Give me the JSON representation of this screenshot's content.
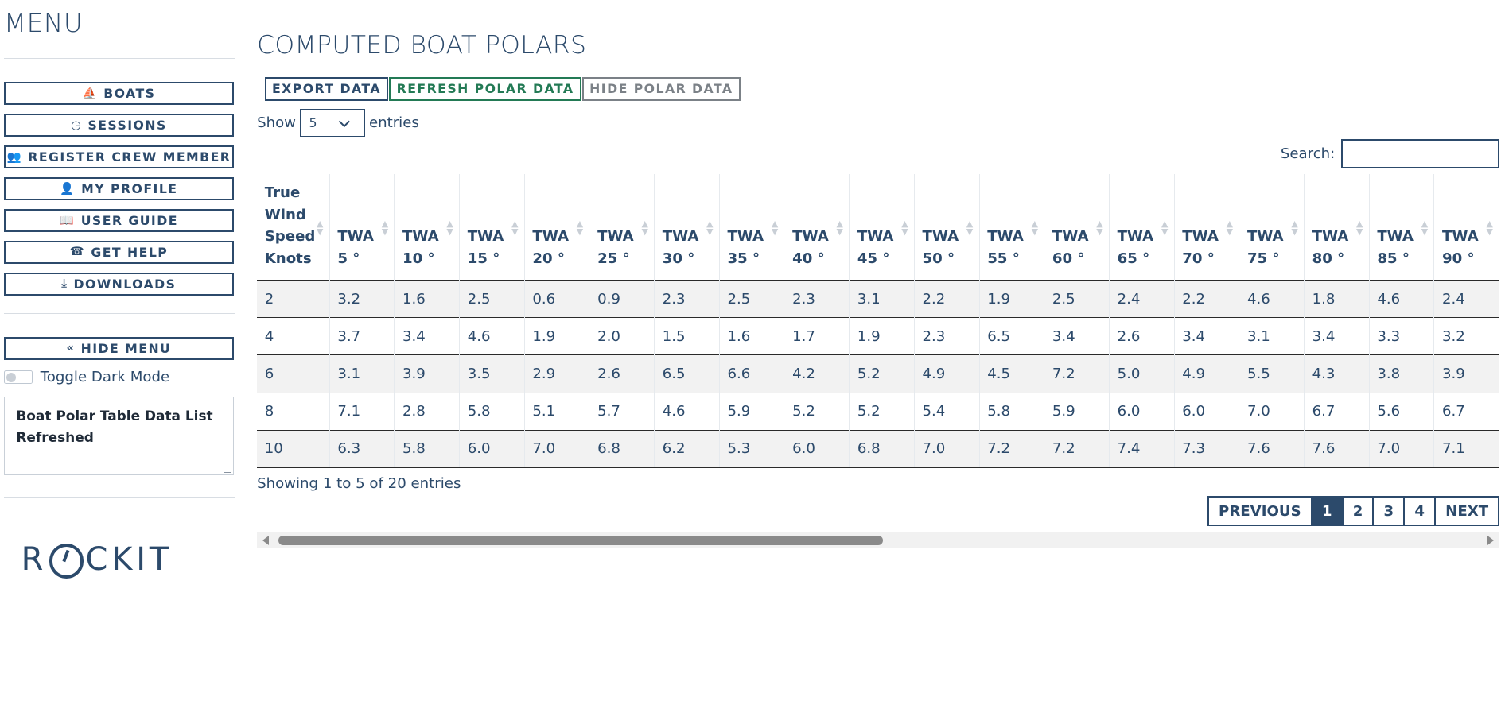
{
  "sidebar": {
    "title": "MENU",
    "items": [
      {
        "label": "BOATS",
        "icon": "sailboat-icon",
        "glyph": "⛵"
      },
      {
        "label": "SESSIONS",
        "icon": "clock-icon",
        "glyph": "◷"
      },
      {
        "label": "REGISTER CREW MEMBER",
        "icon": "users-icon",
        "glyph": "👥"
      },
      {
        "label": "MY PROFILE",
        "icon": "user-icon",
        "glyph": "👤"
      },
      {
        "label": "USER GUIDE",
        "icon": "book-icon",
        "glyph": "📖"
      },
      {
        "label": "GET HELP",
        "icon": "phone-icon",
        "glyph": "☎"
      },
      {
        "label": "DOWNLOADS",
        "icon": "download-icon",
        "glyph": "⤓"
      }
    ],
    "hide_menu": {
      "label": "HIDE MENU",
      "glyph": "«"
    },
    "dark_mode_label": "Toggle Dark Mode",
    "status_message": "Boat Polar Table Data List Refreshed",
    "logo_text_left": "R",
    "logo_text_right": "CKIT"
  },
  "main": {
    "title": "COMPUTED BOAT POLARS",
    "actions": {
      "export": "EXPORT DATA",
      "refresh": "REFRESH POLAR DATA",
      "hide": "HIDE POLAR DATA"
    },
    "length": {
      "show": "Show",
      "value": "5",
      "entries": "entries"
    },
    "search_label": "Search:",
    "table": {
      "first_header": "True Wind Speed Knots",
      "headers": [
        "5 °",
        "10 °",
        "15 °",
        "20 °",
        "25 °",
        "30 °",
        "35 °",
        "40 °",
        "45 °",
        "50 °",
        "55 °",
        "60 °",
        "65 °",
        "70 °",
        "75 °",
        "80 °",
        "85 °",
        "90 °"
      ],
      "header_prefix": "TWA",
      "rows": [
        {
          "tws": "2",
          "vals": [
            "3.2",
            "1.6",
            "2.5",
            "0.6",
            "0.9",
            "2.3",
            "2.5",
            "2.3",
            "3.1",
            "2.2",
            "1.9",
            "2.5",
            "2.4",
            "2.2",
            "4.6",
            "1.8",
            "4.6",
            "2.4"
          ]
        },
        {
          "tws": "4",
          "vals": [
            "3.7",
            "3.4",
            "4.6",
            "1.9",
            "2.0",
            "1.5",
            "1.6",
            "1.7",
            "1.9",
            "2.3",
            "6.5",
            "3.4",
            "2.6",
            "3.4",
            "3.1",
            "3.4",
            "3.3",
            "3.2"
          ]
        },
        {
          "tws": "6",
          "vals": [
            "3.1",
            "3.9",
            "3.5",
            "2.9",
            "2.6",
            "6.5",
            "6.6",
            "4.2",
            "5.2",
            "4.9",
            "4.5",
            "7.2",
            "5.0",
            "4.9",
            "5.5",
            "4.3",
            "3.8",
            "3.9"
          ]
        },
        {
          "tws": "8",
          "vals": [
            "7.1",
            "2.8",
            "5.8",
            "5.1",
            "5.7",
            "4.6",
            "5.9",
            "5.2",
            "5.2",
            "5.4",
            "5.8",
            "5.9",
            "6.0",
            "6.0",
            "7.0",
            "6.7",
            "5.6",
            "6.7"
          ]
        },
        {
          "tws": "10",
          "vals": [
            "6.3",
            "5.8",
            "6.0",
            "7.0",
            "6.8",
            "6.2",
            "5.3",
            "6.0",
            "6.8",
            "7.0",
            "7.2",
            "7.2",
            "7.4",
            "7.3",
            "7.6",
            "7.6",
            "7.0",
            "7.1"
          ]
        }
      ]
    },
    "info": "Showing 1 to 5 of 20 entries",
    "pagination": {
      "previous": "PREVIOUS",
      "pages": [
        "1",
        "2",
        "3",
        "4"
      ],
      "active": "1",
      "next": "NEXT"
    }
  }
}
